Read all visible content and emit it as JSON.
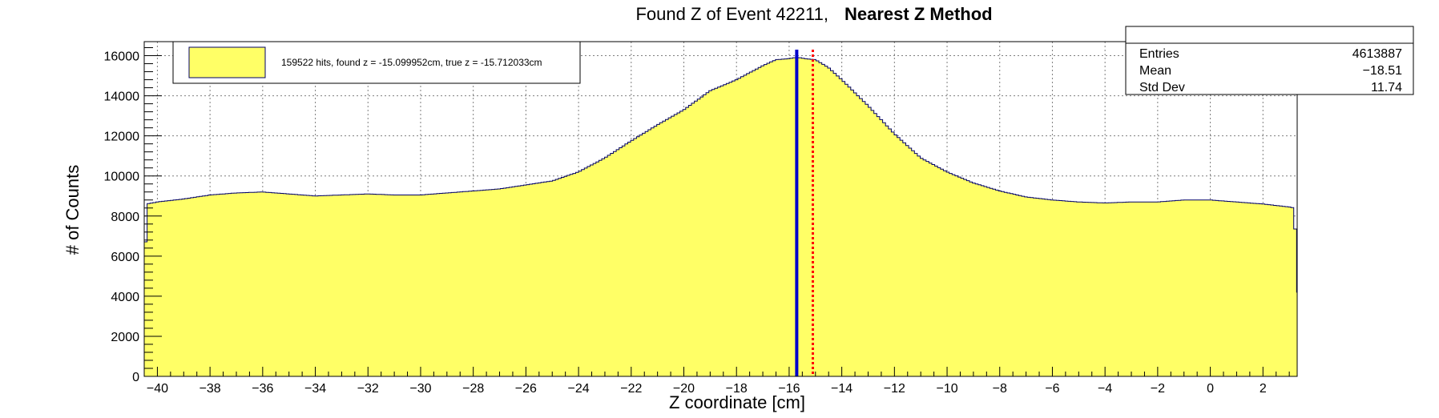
{
  "title": {
    "main": "Found Z of Event 42211,",
    "method": "Nearest Z Method"
  },
  "stats_box": {
    "header": "",
    "rows": [
      {
        "label": "Entries",
        "value": "4613887"
      },
      {
        "label": "Mean",
        "value": "−18.51"
      },
      {
        "label": "Std Dev",
        "value": "11.74"
      }
    ]
  },
  "legend": {
    "entry": "159522 hits, found z = -15.099952cm, true z = -15.712033cm"
  },
  "colors": {
    "fill": "#ffff66",
    "outline": "#000066",
    "grid": "#7f7f7f",
    "true_z_line": "#0000cc",
    "found_z_line": "#ff0000"
  },
  "chart_data": {
    "type": "histogram",
    "title": "Found Z of Event 42211,   Nearest Z Method",
    "xlabel": "Z coordinate [cm]",
    "ylabel": "# of Counts",
    "xlim": [
      -40.5,
      3.3
    ],
    "ylim": [
      0,
      16700
    ],
    "grid": true,
    "x_ticks": [
      -40,
      -38,
      -36,
      -34,
      -32,
      -30,
      -28,
      -26,
      -24,
      -22,
      -20,
      -18,
      -16,
      -14,
      -12,
      -10,
      -8,
      -6,
      -4,
      -2,
      0,
      2
    ],
    "y_ticks": [
      0,
      2000,
      4000,
      6000,
      8000,
      10000,
      12000,
      14000,
      16000
    ],
    "series": [
      {
        "name": "159522 hits, found z = -15.099952cm, true z = -15.712033cm",
        "x": [
          -40.5,
          -40.4,
          -40,
          -39,
          -38,
          -37,
          -36,
          -35,
          -34,
          -33,
          -32,
          -31,
          -30,
          -29,
          -28,
          -27,
          -26,
          -25,
          -24,
          -23,
          -22,
          -21,
          -20,
          -19,
          -18,
          -17,
          -16.5,
          -16,
          -15.8,
          -15.6,
          -15.4,
          -15,
          -14.5,
          -14,
          -13,
          -12,
          -11,
          -10,
          -9,
          -8,
          -7,
          -6,
          -5,
          -4,
          -3,
          -2,
          -1,
          0,
          1,
          2,
          3,
          3.2,
          3.3
        ],
        "y": [
          4400,
          8600,
          8700,
          8850,
          9050,
          9150,
          9200,
          9100,
          9000,
          9050,
          9100,
          9050,
          9050,
          9150,
          9250,
          9350,
          9550,
          9750,
          10200,
          10900,
          11750,
          12550,
          13300,
          14250,
          14800,
          15500,
          15800,
          15850,
          15900,
          15900,
          15850,
          15800,
          15400,
          14800,
          13500,
          12100,
          10900,
          10200,
          9650,
          9250,
          8950,
          8800,
          8700,
          8650,
          8700,
          8700,
          8800,
          8800,
          8700,
          8600,
          8450,
          8400,
          4200
        ]
      }
    ],
    "markers": [
      {
        "label": "true z",
        "x": -15.712033,
        "style": "solid"
      },
      {
        "label": "found z",
        "x": -15.099952,
        "style": "dotted"
      }
    ]
  }
}
